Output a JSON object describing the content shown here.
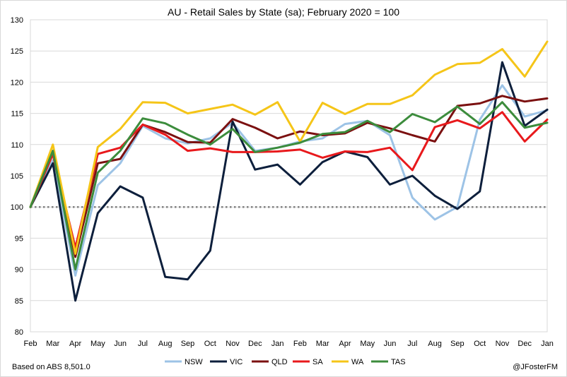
{
  "chart_data": {
    "type": "line",
    "title": "AU - Retail Sales by State (sa); February 2020 = 100",
    "xlabel": "",
    "ylabel": "",
    "ylim": [
      80,
      130
    ],
    "yticks": [
      80,
      85,
      90,
      95,
      100,
      105,
      110,
      115,
      120,
      125,
      130
    ],
    "grid": true,
    "legend": "bottom",
    "reference_line": {
      "value": 100,
      "style": "dotted",
      "color": "#808080"
    },
    "categories": [
      "Feb",
      "Mar",
      "Apr",
      "May",
      "Jun",
      "Jul",
      "Aug",
      "Sep",
      "Oct",
      "Nov",
      "Dec",
      "Jan",
      "Feb",
      "Mar",
      "Apr",
      "May",
      "Jun",
      "Jul",
      "Aug",
      "Sep",
      "Oct",
      "Nov",
      "Dec",
      "Jan"
    ],
    "series": [
      {
        "name": "NSW",
        "color": "#9dc3e6",
        "values": [
          100,
          107.5,
          89,
          103.5,
          107,
          113,
          111,
          110.2,
          111,
          113.5,
          109,
          109.5,
          110.5,
          111,
          113.3,
          113.8,
          111.5,
          101.5,
          98,
          100,
          114,
          119.5,
          114.5,
          115.5
        ]
      },
      {
        "name": "VIC",
        "color": "#0d1f3c",
        "values": [
          100,
          107,
          85,
          99,
          103.3,
          101.5,
          88.8,
          88.4,
          93,
          113.7,
          106,
          106.8,
          103.6,
          107.2,
          108.9,
          108,
          103.6,
          105,
          101.8,
          99.7,
          102.5,
          123.2,
          113,
          115.6
        ]
      },
      {
        "name": "QLD",
        "color": "#7b1010",
        "values": [
          100,
          108.5,
          92,
          107,
          107.7,
          113.2,
          112,
          110.4,
          110.3,
          114.1,
          112.7,
          111,
          112.1,
          111.5,
          111.8,
          113.5,
          112.6,
          111.5,
          110.5,
          116.2,
          116.6,
          117.8,
          116.9,
          117.4
        ]
      },
      {
        "name": "SA",
        "color": "#e8191c",
        "values": [
          100,
          108.5,
          93.5,
          108.5,
          109.5,
          113.2,
          111.6,
          109,
          109.4,
          108.8,
          108.8,
          108.9,
          109.2,
          107.9,
          108.9,
          108.8,
          109.5,
          105.9,
          112.8,
          113.9,
          112.6,
          115.2,
          110.5,
          114
        ]
      },
      {
        "name": "WA",
        "color": "#f5c518",
        "values": [
          100,
          110,
          92.5,
          109.6,
          112.5,
          116.8,
          116.7,
          115,
          115.7,
          116.4,
          114.8,
          116.8,
          110.5,
          116.7,
          114.9,
          116.5,
          116.5,
          117.9,
          121.2,
          122.9,
          123.1,
          125.3,
          120.9,
          126.5
        ]
      },
      {
        "name": "TAS",
        "color": "#3c8c3c",
        "values": [
          100,
          109,
          90,
          105.5,
          109,
          114.2,
          113.4,
          111.6,
          110,
          112.5,
          108.8,
          109.5,
          110.3,
          111.7,
          112,
          113.8,
          112,
          114.9,
          113.6,
          116.1,
          113.3,
          116.8,
          112.7,
          113.5
        ]
      }
    ]
  },
  "footer": {
    "source": "Based on ABS 8,501.0",
    "credit": "@JFosterFM"
  }
}
